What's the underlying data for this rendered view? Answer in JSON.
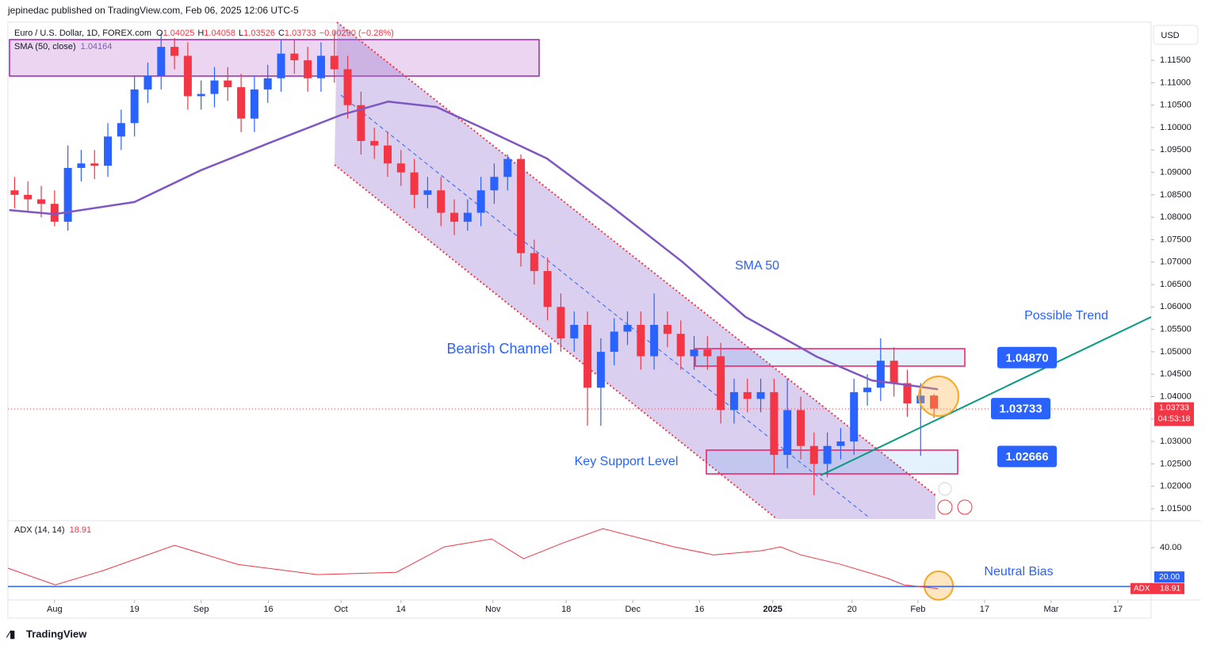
{
  "header": "jepinedac published on TradingView.com, Feb 06, 2025 12:06 UTC-5",
  "footer": "TradingView",
  "currency": "USD",
  "chart_data": [
    {
      "type": "candlestick",
      "title": "Euro / U.S. Dollar, 1D, FOREX.com",
      "ohlc_labels": [
        "O",
        "H",
        "L",
        "C"
      ],
      "change_label": "−0.00290 (−0.28%)",
      "countdown": "04:53:18",
      "up_color": "#2962ff",
      "down_color": "#f23645",
      "x": [
        -6,
        -4,
        -2,
        0,
        2,
        4,
        6,
        8,
        10,
        12,
        14,
        16,
        18,
        20,
        22,
        24,
        26,
        28,
        30,
        32,
        34,
        36,
        38,
        40,
        42,
        44,
        46,
        48,
        50,
        52,
        54,
        56,
        58,
        60,
        62,
        64,
        66,
        68,
        70,
        72,
        74,
        76,
        78,
        80,
        82,
        84,
        86,
        88,
        90,
        92,
        94,
        96,
        98,
        100,
        102,
        104,
        106,
        108,
        110,
        112,
        114,
        116,
        118,
        120,
        122,
        124,
        126,
        128,
        130,
        132
      ],
      "open": [
        1.086,
        1.085,
        1.084,
        1.083,
        1.079,
        1.091,
        1.092,
        1.0915,
        1.098,
        1.101,
        1.1085,
        1.1115,
        1.118,
        1.116,
        1.107,
        1.1075,
        1.1105,
        1.109,
        1.102,
        1.1085,
        1.111,
        1.1165,
        1.115,
        1.111,
        1.116,
        1.113,
        1.105,
        1.097,
        1.096,
        1.092,
        1.09,
        1.085,
        1.086,
        1.081,
        1.079,
        1.081,
        1.086,
        1.089,
        1.093,
        1.072,
        1.068,
        1.06,
        1.053,
        1.056,
        1.042,
        1.05,
        1.0545,
        1.056,
        1.049,
        1.056,
        1.054,
        1.049,
        1.0505,
        1.049,
        1.037,
        1.041,
        1.0395,
        1.041,
        1.027,
        1.037,
        1.029,
        1.025,
        1.029,
        1.03,
        1.041,
        1.042,
        1.048,
        1.043,
        1.0385,
        1.04025
      ],
      "high": [
        1.089,
        1.088,
        1.087,
        1.086,
        1.096,
        1.095,
        1.095,
        1.101,
        1.104,
        1.1115,
        1.1145,
        1.121,
        1.12,
        1.119,
        1.1105,
        1.1135,
        1.1135,
        1.112,
        1.1115,
        1.114,
        1.1195,
        1.1195,
        1.118,
        1.119,
        1.1215,
        1.116,
        1.108,
        1.1,
        1.099,
        1.095,
        1.093,
        1.089,
        1.089,
        1.084,
        1.084,
        1.089,
        1.092,
        1.094,
        1.094,
        1.075,
        1.071,
        1.063,
        1.059,
        1.059,
        1.053,
        1.0575,
        1.059,
        1.059,
        1.063,
        1.059,
        1.057,
        1.0535,
        1.0535,
        1.052,
        1.044,
        1.044,
        1.044,
        1.044,
        1.044,
        1.04,
        1.032,
        1.032,
        1.033,
        1.044,
        1.045,
        1.053,
        1.051,
        1.046,
        1.043,
        1.04058
      ],
      "low": [
        1.082,
        1.081,
        1.08,
        1.078,
        1.077,
        1.088,
        1.0885,
        1.089,
        1.095,
        1.098,
        1.1055,
        1.1085,
        1.113,
        1.104,
        1.104,
        1.1045,
        1.106,
        1.099,
        1.099,
        1.1055,
        1.108,
        1.112,
        1.108,
        1.108,
        1.11,
        1.102,
        1.094,
        1.093,
        1.089,
        1.087,
        1.082,
        1.082,
        1.078,
        1.076,
        1.077,
        1.078,
        1.083,
        1.086,
        1.069,
        1.065,
        1.057,
        1.05,
        1.05,
        1.0335,
        1.0335,
        1.047,
        1.0515,
        1.046,
        1.046,
        1.051,
        1.046,
        1.046,
        1.046,
        1.034,
        1.034,
        1.0365,
        1.0365,
        1.0225,
        1.024,
        1.026,
        1.018,
        1.022,
        1.026,
        1.027,
        1.038,
        1.039,
        1.04,
        1.0355,
        1.0268,
        1.03526
      ],
      "close": [
        1.085,
        1.084,
        1.083,
        1.079,
        1.091,
        1.092,
        1.0915,
        1.098,
        1.101,
        1.1085,
        1.1115,
        1.118,
        1.116,
        1.107,
        1.1075,
        1.1105,
        1.109,
        1.102,
        1.1085,
        1.111,
        1.1165,
        1.115,
        1.111,
        1.116,
        1.113,
        1.105,
        1.097,
        1.096,
        1.092,
        1.09,
        1.085,
        1.086,
        1.081,
        1.079,
        1.081,
        1.086,
        1.089,
        1.093,
        1.072,
        1.068,
        1.06,
        1.053,
        1.056,
        1.042,
        1.05,
        1.0545,
        1.056,
        1.049,
        1.056,
        1.054,
        1.049,
        1.0505,
        1.049,
        1.037,
        1.041,
        1.0395,
        1.041,
        1.027,
        1.037,
        1.029,
        1.025,
        1.029,
        1.03,
        1.041,
        1.042,
        1.048,
        1.043,
        1.0385,
        1.04023,
        1.03733
      ],
      "xlim": [
        -7,
        164.6
      ],
      "xticks": [
        {
          "value": 0,
          "label": "Aug"
        },
        {
          "value": 12,
          "label": "19"
        },
        {
          "value": 22,
          "label": "Sep"
        },
        {
          "value": 32.1,
          "label": "16"
        },
        {
          "value": 43,
          "label": "Oct"
        },
        {
          "value": 52,
          "label": "14"
        },
        {
          "value": 65.8,
          "label": "Nov"
        },
        {
          "value": 76.8,
          "label": "18"
        },
        {
          "value": 86.8,
          "label": "Dec"
        },
        {
          "value": 96.8,
          "label": "16"
        },
        {
          "value": 107.8,
          "label": "2025"
        },
        {
          "value": 119.7,
          "label": "20"
        },
        {
          "value": 129.6,
          "label": "Feb"
        },
        {
          "value": 139.6,
          "label": "17"
        },
        {
          "value": 149.6,
          "label": "Mar"
        },
        {
          "value": 159.6,
          "label": "17"
        }
      ],
      "ylim": [
        1.0127,
        1.1235
      ],
      "yticks": [
        {
          "value": 1.015,
          "label": "1.01500"
        },
        {
          "value": 1.02,
          "label": "1.02000"
        },
        {
          "value": 1.025,
          "label": "1.02500"
        },
        {
          "value": 1.03,
          "label": "1.03000"
        },
        {
          "value": 1.035,
          "label": "1.03500"
        },
        {
          "value": 1.04,
          "label": "1.04000"
        },
        {
          "value": 1.045,
          "label": "1.04500"
        },
        {
          "value": 1.05,
          "label": "1.05000"
        },
        {
          "value": 1.055,
          "label": "1.05500"
        },
        {
          "value": 1.06,
          "label": "1.06000"
        },
        {
          "value": 1.065,
          "label": "1.06500"
        },
        {
          "value": 1.07,
          "label": "1.07000"
        },
        {
          "value": 1.075,
          "label": "1.07500"
        },
        {
          "value": 1.08,
          "label": "1.08000"
        },
        {
          "value": 1.085,
          "label": "1.08500"
        },
        {
          "value": 1.09,
          "label": "1.09000"
        },
        {
          "value": 1.095,
          "label": "1.09500"
        },
        {
          "value": 1.1,
          "label": "1.10000"
        },
        {
          "value": 1.105,
          "label": "1.10500"
        },
        {
          "value": 1.11,
          "label": "1.11000"
        },
        {
          "value": 1.115,
          "label": "1.11500"
        }
      ],
      "sma": {
        "name": "SMA (50, close)",
        "color": "#7e57c2",
        "x": [
          -6.8,
          0,
          12,
          22,
          32.3,
          43,
          50.1,
          57.3,
          63.8,
          73.9,
          83.5,
          94.2,
          103.7,
          114.4,
          122.7,
          127.5,
          132.6
        ],
        "values": [
          1.0816,
          1.0807,
          1.0834,
          1.0905,
          1.0966,
          1.1028,
          1.1058,
          1.1046,
          1.1002,
          1.0931,
          1.0825,
          1.0701,
          1.0578,
          1.0489,
          1.0436,
          1.0427,
          1.04164
        ]
      },
      "annotations": [
        "SMA 50",
        "Possible Trend",
        "Bearish Channel",
        "Key Support Level",
        "Neutral Bias"
      ],
      "levels": [
        {
          "value": 1.0487,
          "label": "1.04870"
        },
        1.03733,
        1.02666
      ]
    },
    {
      "type": "line",
      "title": "ADX (14, 14)",
      "color": "#f23645",
      "x": [
        -7,
        0.1,
        7.3,
        18,
        27.5,
        39.4,
        51.3,
        58.5,
        65.6,
        70.4,
        76.3,
        82.3,
        93,
        98.9,
        106.1,
        109,
        112,
        118,
        125.1,
        127.5,
        132.6
      ],
      "values": [
        29.4,
        20.8,
        28.2,
        41.2,
        31.4,
        26.1,
        27.3,
        40.4,
        44.5,
        34.3,
        42.4,
        49.8,
        40.4,
        36.3,
        38.4,
        40.4,
        36.3,
        31.4,
        24.1,
        20.8,
        18.91
      ],
      "ylim": [
        13.9,
        52.7
      ],
      "yticks": [
        {
          "value": 40,
          "label": "40.00"
        }
      ],
      "level": {
        "value": 20,
        "label": "20.00"
      },
      "level_color": "#2962ff",
      "last_label": "ADX"
    }
  ]
}
